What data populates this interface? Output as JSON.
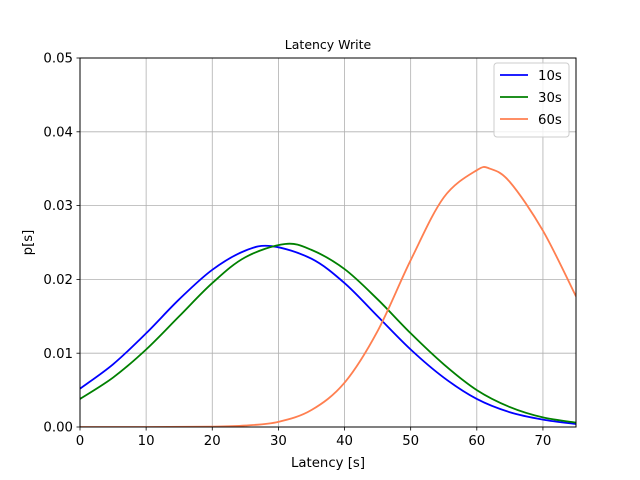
{
  "chart_data": {
    "type": "line",
    "title": "Latency Write",
    "xlabel": "Latency [s]",
    "ylabel": "p[s]",
    "xlim": [
      0,
      75
    ],
    "ylim": [
      0,
      0.05
    ],
    "x_ticks": [
      "0",
      "10",
      "20",
      "30",
      "40",
      "50",
      "60",
      "70"
    ],
    "y_ticks": [
      "0.00",
      "0.01",
      "0.02",
      "0.03",
      "0.04",
      "0.05"
    ],
    "grid": true,
    "legend_position": "top-right",
    "series": [
      {
        "name": "10s",
        "color": "#0000ff",
        "x": [
          0,
          5,
          10,
          15,
          20,
          25,
          29,
          35,
          40,
          45,
          50,
          55,
          60,
          65,
          70,
          75
        ],
        "y": [
          0.0052,
          0.0085,
          0.0127,
          0.0173,
          0.0213,
          0.0239,
          0.0245,
          0.0228,
          0.0195,
          0.015,
          0.0105,
          0.0067,
          0.0038,
          0.002,
          0.001,
          0.0004
        ]
      },
      {
        "name": "30s",
        "color": "#008000",
        "x": [
          0,
          5,
          10,
          15,
          20,
          25,
          31,
          35,
          40,
          45,
          50,
          55,
          60,
          65,
          70,
          75
        ],
        "y": [
          0.0038,
          0.0067,
          0.0105,
          0.015,
          0.0195,
          0.023,
          0.0248,
          0.024,
          0.0214,
          0.0173,
          0.0127,
          0.0085,
          0.005,
          0.0027,
          0.0013,
          0.0006
        ]
      },
      {
        "name": "60s",
        "color": "#ff7f50",
        "x": [
          0,
          10,
          20,
          25,
          30,
          35,
          40,
          45,
          50,
          55,
          60,
          62,
          65,
          70,
          75
        ],
        "y": [
          0.0,
          0.0,
          5e-05,
          0.0002,
          0.0007,
          0.0023,
          0.006,
          0.013,
          0.0226,
          0.0311,
          0.0348,
          0.035,
          0.0332,
          0.0266,
          0.0177
        ]
      }
    ]
  }
}
